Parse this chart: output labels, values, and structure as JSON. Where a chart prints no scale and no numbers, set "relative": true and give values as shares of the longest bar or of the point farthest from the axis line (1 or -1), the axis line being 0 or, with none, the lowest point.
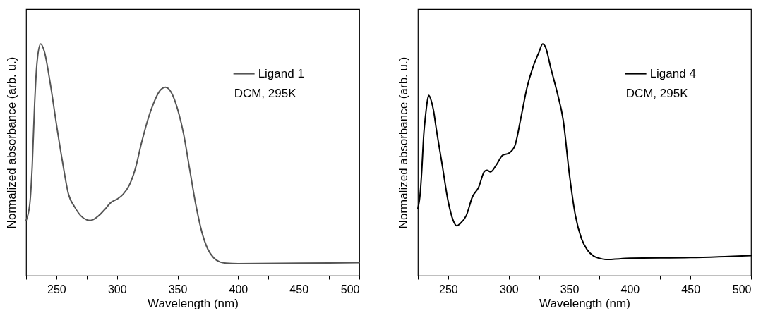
{
  "chart_data": [
    {
      "type": "line",
      "xlabel": "Wavelength (nm)",
      "ylabel": "Normalized absorbance (arb. u.)",
      "relative": true,
      "legend": "top right",
      "tick_labels": "x",
      "xlim": [
        225,
        500
      ],
      "xticks": [
        {
          "value": 225,
          "label": null
        },
        250,
        {
          "value": 275,
          "label": null
        },
        300,
        {
          "value": 325,
          "label": null
        },
        350,
        {
          "value": 375,
          "label": null
        },
        400,
        {
          "value": 425,
          "label": null
        },
        450,
        {
          "value": 475,
          "label": null
        },
        500
      ],
      "annotations": [
        "DCM, 295K"
      ],
      "x": [
        225,
        228,
        230,
        232,
        234,
        237,
        240,
        245,
        250,
        255,
        260,
        265,
        270,
        275,
        278,
        285,
        290,
        295,
        300,
        305,
        310,
        315,
        320,
        325,
        330,
        335,
        340,
        345,
        350,
        355,
        360,
        365,
        370,
        375,
        380,
        385,
        390,
        400,
        450,
        500
      ],
      "series": [
        {
          "name": "Ligand 1",
          "color": "#555555",
          "values": [
            0.238,
            0.308,
            0.47,
            0.74,
            0.92,
            1.0,
            0.968,
            0.827,
            0.654,
            0.492,
            0.351,
            0.297,
            0.259,
            0.241,
            0.238,
            0.259,
            0.286,
            0.316,
            0.33,
            0.351,
            0.389,
            0.459,
            0.568,
            0.665,
            0.741,
            0.795,
            0.813,
            0.789,
            0.719,
            0.611,
            0.459,
            0.308,
            0.189,
            0.114,
            0.076,
            0.059,
            0.054,
            0.052,
            0.054,
            0.056
          ]
        }
      ]
    },
    {
      "type": "line",
      "xlabel": "Wavelength (nm)",
      "ylabel": "Normalized absorbance (arb. u.)",
      "relative": true,
      "legend": "top right",
      "tick_labels": "x",
      "xlim": [
        225,
        500
      ],
      "xticks": [
        {
          "value": 225,
          "label": null
        },
        250,
        {
          "value": 275,
          "label": null
        },
        300,
        {
          "value": 325,
          "label": null
        },
        350,
        {
          "value": 375,
          "label": null
        },
        400,
        {
          "value": 425,
          "label": null
        },
        450,
        {
          "value": 475,
          "label": null
        },
        500
      ],
      "annotations": [
        "DCM, 295K"
      ],
      "x": [
        225,
        227,
        228,
        230,
        231,
        233,
        234,
        236,
        238,
        240,
        245,
        250,
        254,
        257,
        260,
        265,
        270,
        275,
        280,
        282,
        285,
        290,
        295,
        300,
        305,
        310,
        315,
        320,
        325,
        328,
        330,
        335,
        340,
        345,
        350,
        355,
        360,
        365,
        370,
        375,
        380,
        400,
        450,
        500
      ],
      "series": [
        {
          "name": "Ligand 4",
          "color": "#000000",
          "values": [
            0.29,
            0.36,
            0.435,
            0.62,
            0.675,
            0.76,
            0.778,
            0.755,
            0.71,
            0.64,
            0.48,
            0.32,
            0.24,
            0.215,
            0.225,
            0.26,
            0.34,
            0.38,
            0.45,
            0.455,
            0.448,
            0.48,
            0.52,
            0.528,
            0.56,
            0.68,
            0.81,
            0.9,
            0.965,
            1.0,
            0.99,
            0.89,
            0.79,
            0.67,
            0.44,
            0.26,
            0.16,
            0.11,
            0.085,
            0.075,
            0.07,
            0.075,
            0.078,
            0.087
          ]
        }
      ]
    }
  ]
}
